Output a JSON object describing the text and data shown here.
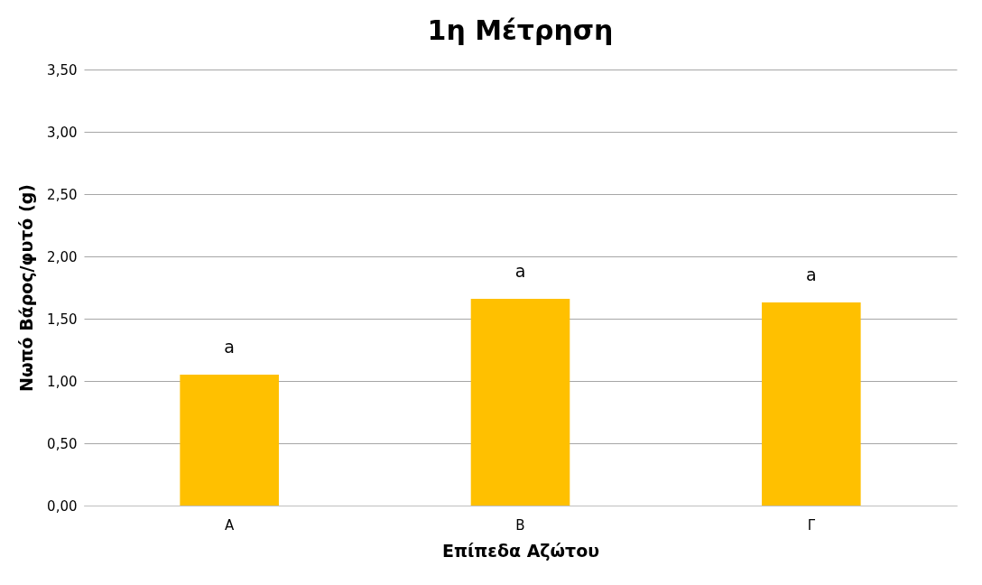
{
  "chart_data": {
    "type": "bar",
    "title": "1η Μέτρηση",
    "xlabel": "Επίπεδα Αζώτου",
    "ylabel": "Νωπό Βάρος/φυτό (g)",
    "categories": [
      "Α",
      "Β",
      "Γ"
    ],
    "values": [
      1.05,
      1.66,
      1.63
    ],
    "color": "#ffc000",
    "ylim": [
      0,
      3.5
    ],
    "yticks": [
      {
        "value": 0,
        "label": "0,00"
      },
      {
        "value": 0.5,
        "label": "0,50"
      },
      {
        "value": 1,
        "label": "1,00"
      },
      {
        "value": 1.5,
        "label": "1,50"
      },
      {
        "value": 2,
        "label": "2,00"
      },
      {
        "value": 2.5,
        "label": "2,50"
      },
      {
        "value": 3,
        "label": "3,00"
      },
      {
        "value": 3.5,
        "label": "3,50"
      }
    ],
    "grid": "y",
    "annotations": [
      "a",
      "a",
      "a"
    ]
  }
}
